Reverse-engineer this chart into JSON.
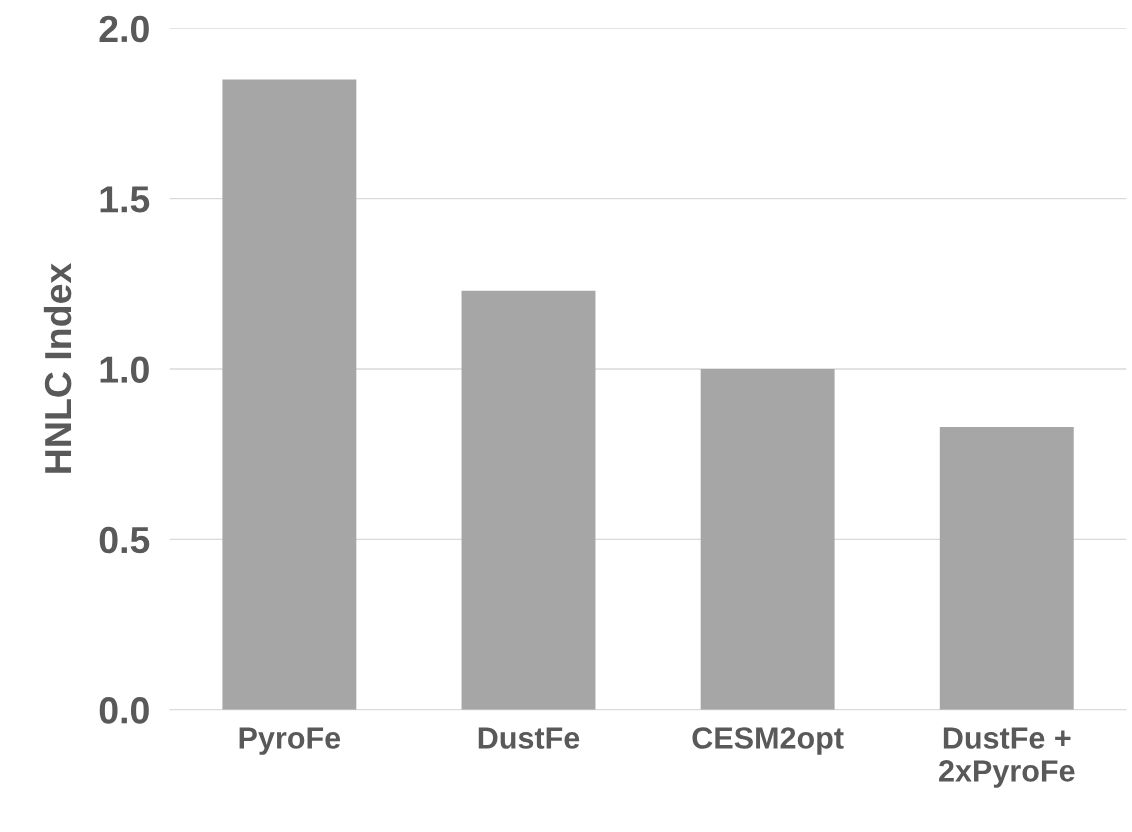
{
  "chart_data": {
    "type": "bar",
    "ylabel": "HNLC Index",
    "categories": [
      "PyroFe",
      "DustFe",
      "CESM2opt",
      "DustFe +\n2xPyroFe"
    ],
    "values": [
      1.85,
      1.23,
      1.0,
      0.83
    ],
    "color": "#a6a6a6",
    "ylim": [
      0,
      2.0
    ],
    "yticks": [
      {
        "value": 0,
        "label": "0.0"
      },
      {
        "value": 0.5,
        "label": "0.5"
      },
      {
        "value": 1.0,
        "label": "1.0"
      },
      {
        "value": 1.5,
        "label": "1.5"
      },
      {
        "value": 2.0,
        "label": "2.0"
      }
    ],
    "grid": "y",
    "legend": false
  }
}
